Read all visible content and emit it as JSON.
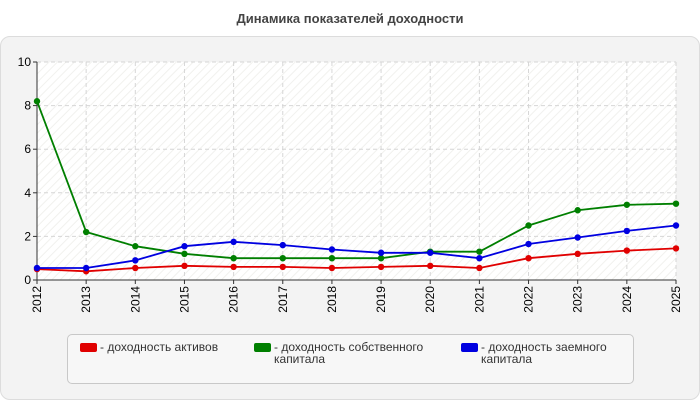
{
  "title": "Динамика показателей доходности",
  "chart_data": {
    "type": "line",
    "title": "Динамика показателей доходности",
    "xlabel": "",
    "ylabel": "",
    "ylim": [
      0,
      10
    ],
    "yticks": [
      0,
      2,
      4,
      6,
      8,
      10
    ],
    "grid": true,
    "legend_position": "bottom",
    "x": [
      "2012",
      "2013",
      "2014",
      "2015",
      "2016",
      "2017",
      "2018",
      "2019",
      "2020",
      "2021",
      "2022",
      "2023",
      "2024",
      "2025"
    ],
    "series": [
      {
        "name": "- доходность активов",
        "color": "#e00000",
        "values": [
          0.5,
          0.4,
          0.55,
          0.65,
          0.6,
          0.6,
          0.55,
          0.6,
          0.65,
          0.55,
          1.0,
          1.2,
          1.35,
          1.45
        ]
      },
      {
        "name": "- доходность собственного капитала",
        "color": "#007f00",
        "values": [
          8.2,
          2.2,
          1.55,
          1.2,
          1.0,
          1.0,
          1.0,
          1.0,
          1.3,
          1.3,
          2.5,
          3.2,
          3.45,
          3.5
        ]
      },
      {
        "name": "- доходность заемного капитала",
        "color": "#0000e0",
        "values": [
          0.55,
          0.55,
          0.9,
          1.55,
          1.75,
          1.6,
          1.4,
          1.25,
          1.25,
          1.0,
          1.65,
          1.95,
          2.25,
          2.5
        ]
      }
    ]
  },
  "legend": {
    "items": [
      {
        "label": "- доходность активов",
        "color": "#e00000"
      },
      {
        "label": "- доходность собственного капитала",
        "color": "#007f00"
      },
      {
        "label": "- доходность заемного капитала",
        "color": "#0000e0"
      }
    ]
  }
}
